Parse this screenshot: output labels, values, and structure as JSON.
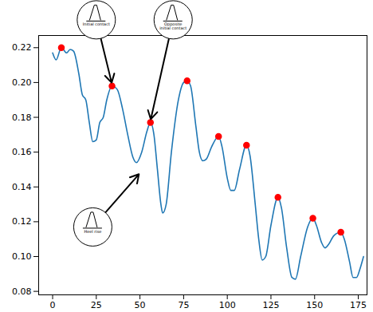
{
  "chart_data": {
    "type": "line",
    "x": [
      0,
      2,
      5,
      8,
      10,
      12,
      15,
      17,
      19,
      21,
      23,
      25,
      27,
      29,
      31,
      34,
      37,
      40,
      43,
      46,
      48,
      51,
      54,
      56,
      58,
      60,
      62,
      63,
      65,
      68,
      72,
      75,
      77,
      79,
      82,
      84,
      86,
      88,
      91,
      95,
      97,
      100,
      102,
      104,
      107,
      111,
      113,
      116,
      118,
      120,
      122,
      125,
      129,
      131,
      134,
      137,
      139,
      142,
      146,
      149,
      151,
      154,
      156,
      158,
      161,
      165,
      167,
      170,
      172,
      174,
      176,
      178
    ],
    "values": [
      0.217,
      0.213,
      0.22,
      0.217,
      0.219,
      0.218,
      0.205,
      0.193,
      0.19,
      0.177,
      0.166,
      0.167,
      0.177,
      0.18,
      0.19,
      0.198,
      0.196,
      0.185,
      0.17,
      0.157,
      0.154,
      0.16,
      0.172,
      0.177,
      0.17,
      0.15,
      0.13,
      0.125,
      0.13,
      0.16,
      0.19,
      0.2,
      0.201,
      0.198,
      0.175,
      0.16,
      0.155,
      0.156,
      0.163,
      0.169,
      0.163,
      0.145,
      0.138,
      0.138,
      0.15,
      0.164,
      0.158,
      0.13,
      0.11,
      0.098,
      0.1,
      0.118,
      0.134,
      0.128,
      0.105,
      0.088,
      0.087,
      0.1,
      0.117,
      0.122,
      0.118,
      0.108,
      0.105,
      0.107,
      0.112,
      0.114,
      0.11,
      0.097,
      0.088,
      0.088,
      0.093,
      0.1
    ],
    "color": "#1f77b4",
    "peaks": {
      "x": [
        5,
        34,
        56,
        77,
        95,
        111,
        129,
        149,
        165
      ],
      "values": [
        0.22,
        0.198,
        0.177,
        0.201,
        0.169,
        0.164,
        0.134,
        0.122,
        0.114
      ],
      "color": "red",
      "marker": "circle"
    },
    "xlim": [
      -8,
      180
    ],
    "xticks": [
      0,
      25,
      50,
      75,
      100,
      125,
      150,
      175
    ],
    "ylim": [
      0.078,
      0.227
    ],
    "yticks": [
      0.08,
      {
        "value": 0.1,
        "label": "0.10"
      },
      0.12,
      0.14,
      0.16,
      0.18,
      {
        "value": 0.2,
        "label": "0.20"
      },
      0.22
    ],
    "annotations": [
      {
        "text": "Initial contact",
        "xy": [
          34,
          0.199
        ],
        "xytext": [
          25,
          0.236
        ]
      },
      {
        "text": "Opposite initial contact",
        "xy": [
          56,
          0.178
        ],
        "xytext": [
          69,
          0.236
        ]
      },
      {
        "text": "Heel rise",
        "xy": [
          50,
          0.148
        ],
        "xytext": [
          23,
          0.117
        ]
      }
    ]
  }
}
